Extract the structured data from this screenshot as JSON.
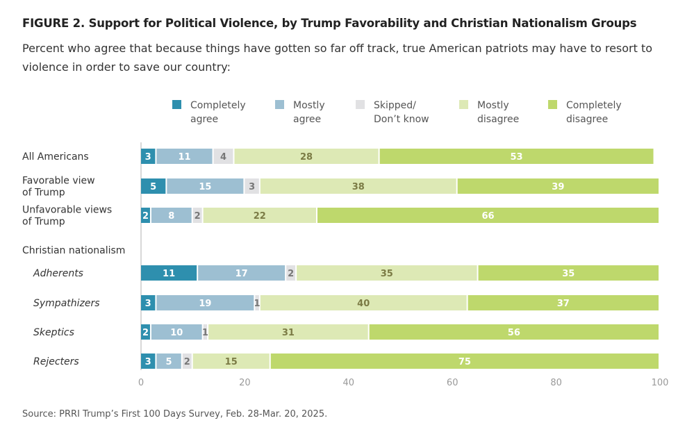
{
  "chart_data": {
    "type": "bar",
    "orientation": "horizontal",
    "stacked": true,
    "title": "FIGURE 2.  Support for Political Violence, by Trump Favorability and Christian Nationalism Groups",
    "subtitle": "Percent who agree that because things have gotten so far off track, true American patriots may have to resort to violence in order to save our country:",
    "source": "Source: PRRI Trump’s First 100 Days Survey, Feb. 28-Mar. 20, 2025.",
    "xlim": [
      0,
      100
    ],
    "xticks": [
      0,
      20,
      40,
      60,
      80,
      100
    ],
    "grid": false,
    "legend_placement": "top",
    "group_header": "Christian nationalism",
    "categories": [
      {
        "label": [
          "All Americans"
        ],
        "italic": false
      },
      {
        "label": [
          "Favorable view",
          "of Trump"
        ],
        "italic": false
      },
      {
        "label": [
          "Unfavorable views",
          "of Trump"
        ],
        "italic": false
      },
      {
        "label": [
          "Adherents"
        ],
        "italic": true
      },
      {
        "label": [
          "Sympathizers"
        ],
        "italic": true
      },
      {
        "label": [
          "Skeptics"
        ],
        "italic": true
      },
      {
        "label": [
          "Rejecters"
        ],
        "italic": true
      }
    ],
    "series": [
      {
        "name": [
          "Completely",
          "agree"
        ],
        "color": "#2e8fae",
        "label_color": "#ffffff",
        "values": [
          3,
          5,
          2,
          11,
          3,
          2,
          3
        ]
      },
      {
        "name": [
          "Mostly",
          "agree"
        ],
        "color": "#9dbfd2",
        "label_color": "#ffffff",
        "values": [
          11,
          15,
          8,
          17,
          19,
          10,
          5
        ]
      },
      {
        "name": [
          "Skipped/",
          "Don’t know"
        ],
        "color": "#e1e1e3",
        "label_color": "#777777",
        "values": [
          4,
          3,
          2,
          2,
          1,
          1,
          2
        ]
      },
      {
        "name": [
          "Mostly",
          "disagree"
        ],
        "color": "#dde9b5",
        "label_color": "#7b7b45",
        "values": [
          28,
          38,
          22,
          35,
          40,
          31,
          15
        ]
      },
      {
        "name": [
          "Completely",
          "disagree"
        ],
        "color": "#bed86c",
        "label_color": "#ffffff",
        "values": [
          53,
          39,
          66,
          35,
          37,
          56,
          75
        ]
      }
    ]
  }
}
